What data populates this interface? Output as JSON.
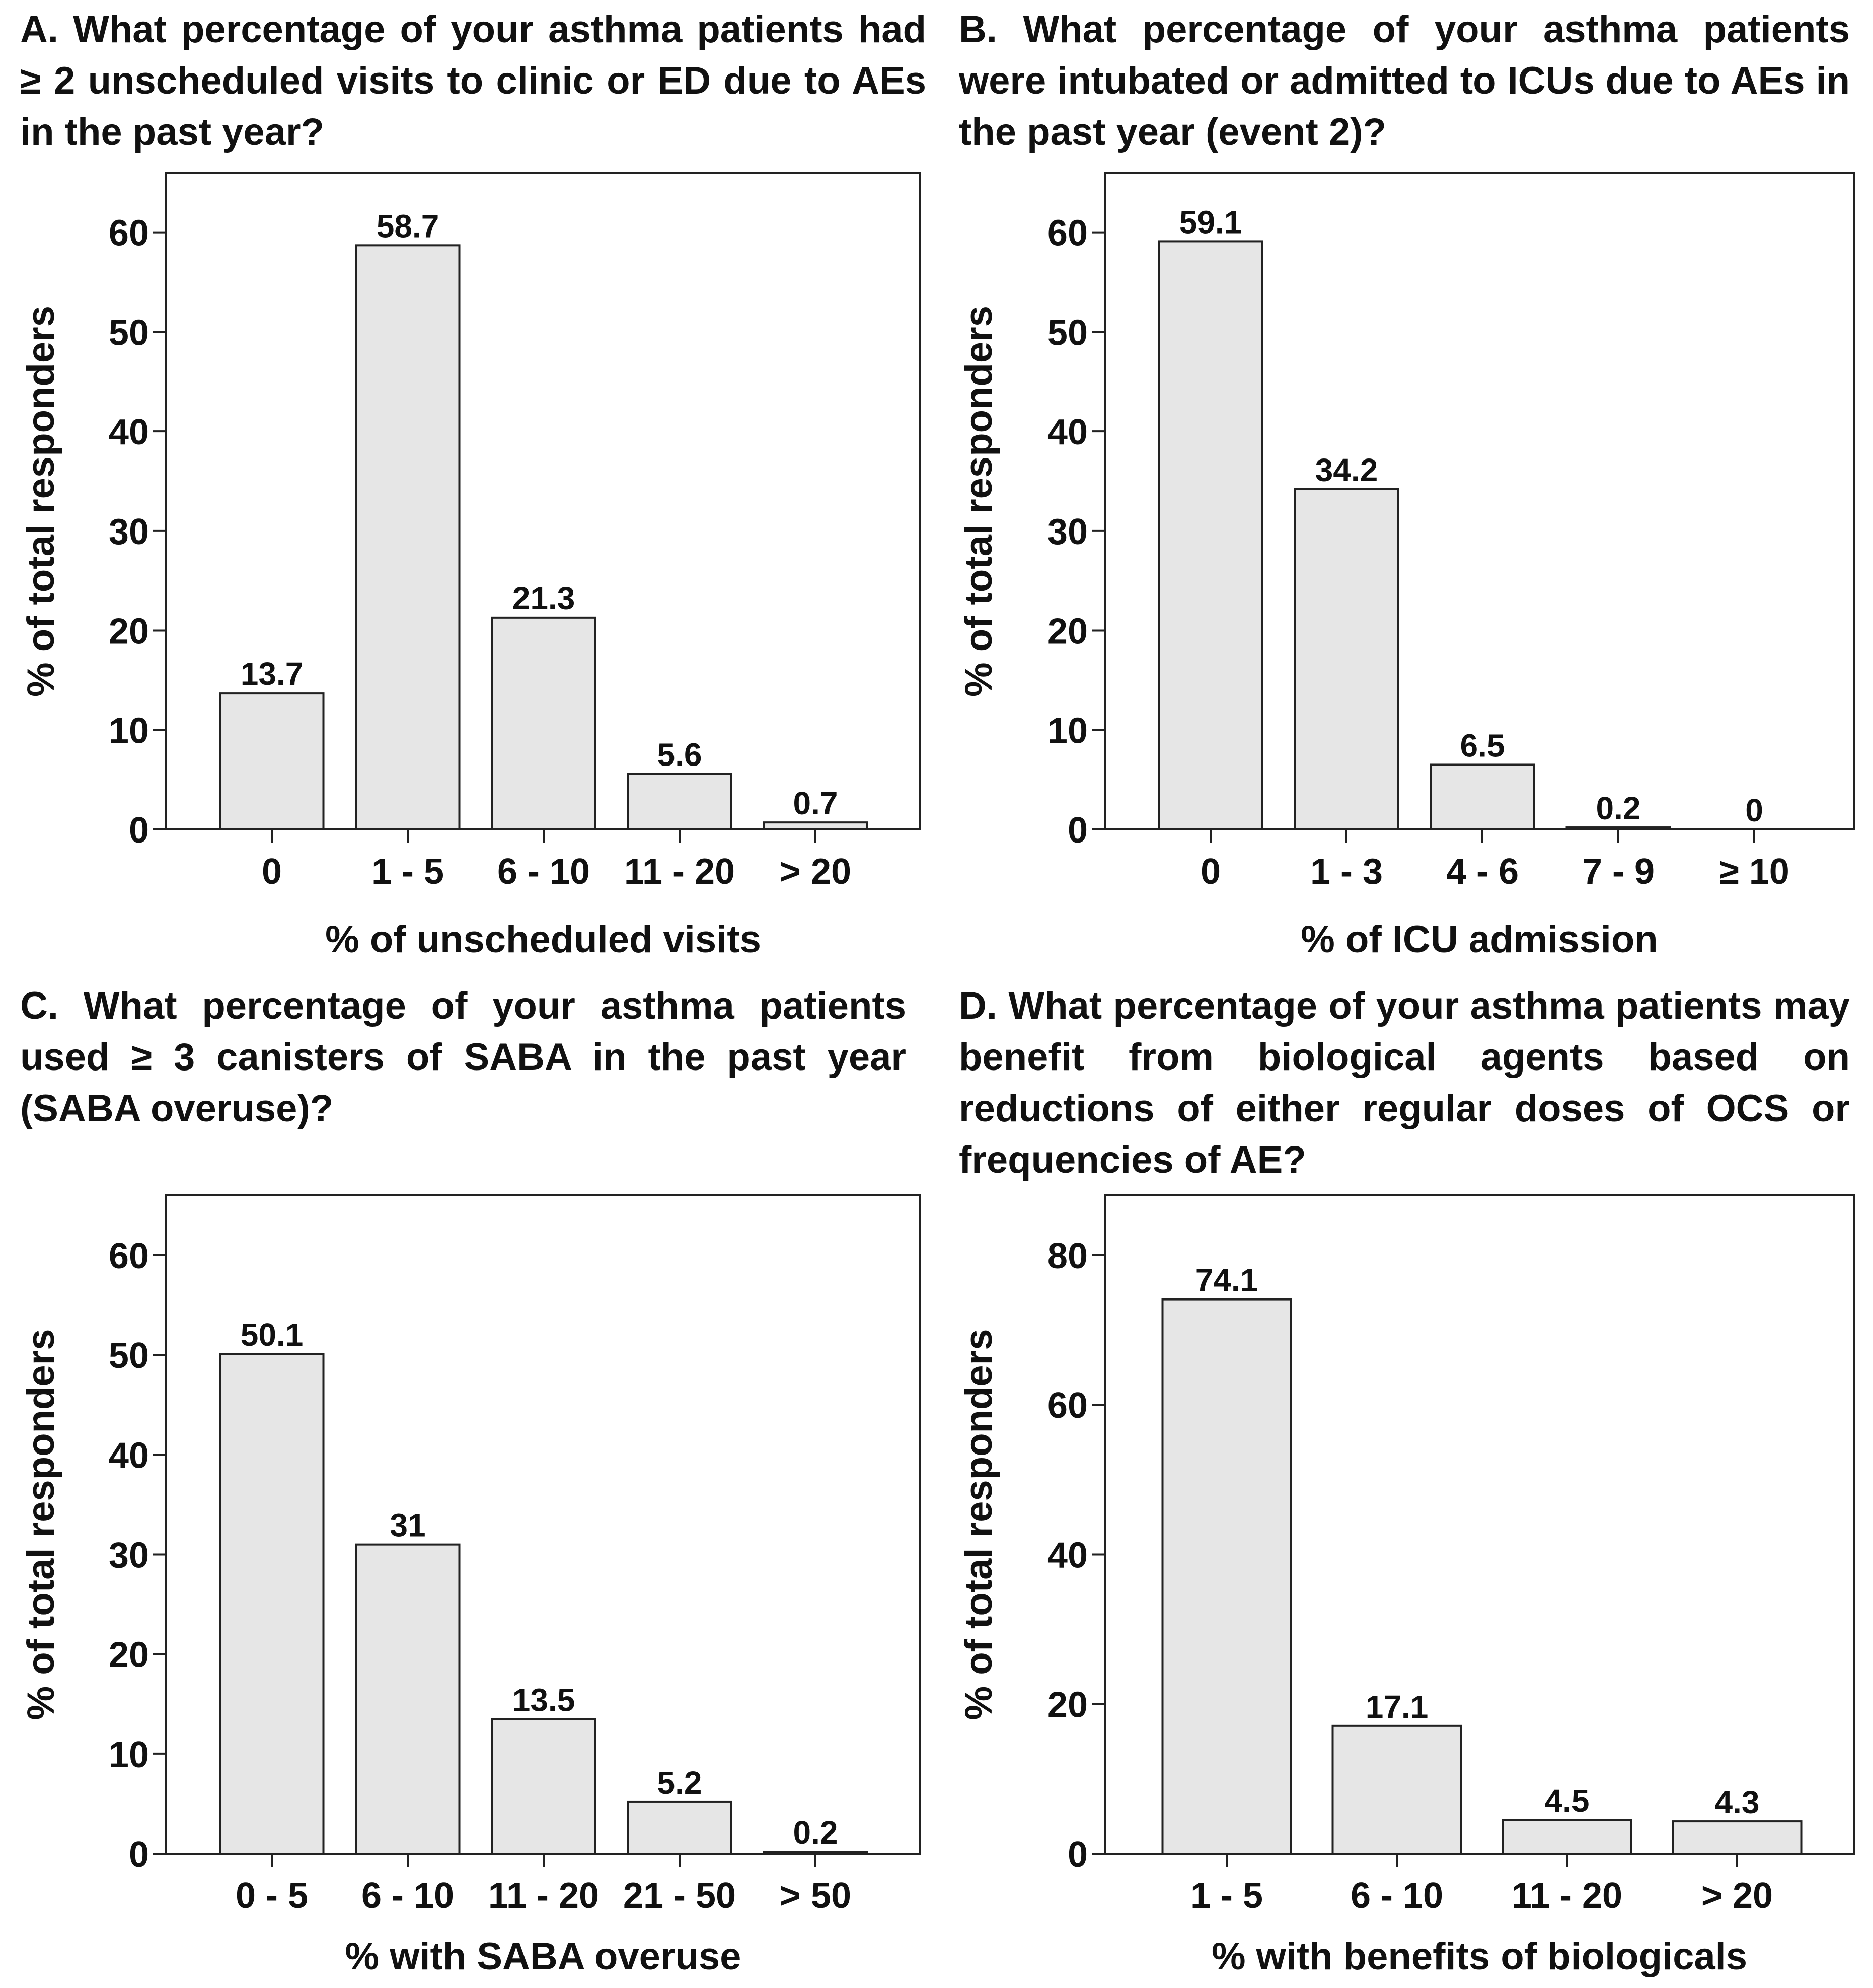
{
  "chart_data": [
    {
      "type": "bar",
      "panel": "A",
      "title": "A. What percentage of your asthma patients had ≥ 2 unscheduled visits to clinic or ED due to AEs in the past year?",
      "xlabel": "% of unscheduled visits",
      "ylabel": "% of total responders",
      "categories": [
        "0",
        "1 - 5",
        "6 - 10",
        "11 - 20",
        "> 20"
      ],
      "values": [
        13.7,
        58.7,
        21.3,
        5.6,
        0.7
      ],
      "value_labels": [
        "13.7",
        "58.7",
        "21.3",
        "5.6",
        "0.7"
      ],
      "ylim": [
        0,
        66
      ],
      "yticks": [
        0,
        10,
        20,
        30,
        40,
        50,
        60
      ],
      "bar_color": "#e6e6e6"
    },
    {
      "type": "bar",
      "panel": "B",
      "title": "B. What percentage of your asthma patients were intubated or admitted to ICUs due to AEs in the past year (event 2)?",
      "xlabel": "% of ICU admission",
      "ylabel": "% of total responders",
      "categories": [
        "0",
        "1 - 3",
        "4 - 6",
        "7 - 9",
        "≥ 10"
      ],
      "values": [
        59.1,
        34.2,
        6.5,
        0.2,
        0
      ],
      "value_labels": [
        "59.1",
        "34.2",
        "6.5",
        "0.2",
        "0"
      ],
      "ylim": [
        0,
        66
      ],
      "yticks": [
        0,
        10,
        20,
        30,
        40,
        50,
        60
      ],
      "bar_color": "#e6e6e6"
    },
    {
      "type": "bar",
      "panel": "C",
      "title": "C. What percentage of your asthma patients used ≥ 3 canisters of SABA in the past year (SABA overuse)?",
      "xlabel": "% with SABA overuse",
      "ylabel": "% of total responders",
      "categories": [
        "0 - 5",
        "6 - 10",
        "11 - 20",
        "21 - 50",
        "> 50"
      ],
      "values": [
        50.1,
        31,
        13.5,
        5.2,
        0.2
      ],
      "value_labels": [
        "50.1",
        "31",
        "13.5",
        "5.2",
        "0.2"
      ],
      "ylim": [
        0,
        66
      ],
      "yticks": [
        0,
        10,
        20,
        30,
        40,
        50,
        60
      ],
      "bar_color": "#e6e6e6"
    },
    {
      "type": "bar",
      "panel": "D",
      "title": "D. What percentage of your asthma patients may benefit from biological agents based on reductions of either regular doses of OCS or frequencies of AE?",
      "xlabel": "% with benefits of biologicals",
      "ylabel": "% of total responders",
      "categories": [
        "1 - 5",
        "6 - 10",
        "11 - 20",
        "> 20"
      ],
      "values": [
        74.1,
        17.1,
        4.5,
        4.3
      ],
      "value_labels": [
        "74.1",
        "17.1",
        "4.5",
        "4.3"
      ],
      "ylim": [
        0,
        88
      ],
      "yticks": [
        0,
        20,
        40,
        60,
        80
      ],
      "bar_color": "#e6e6e6"
    }
  ]
}
